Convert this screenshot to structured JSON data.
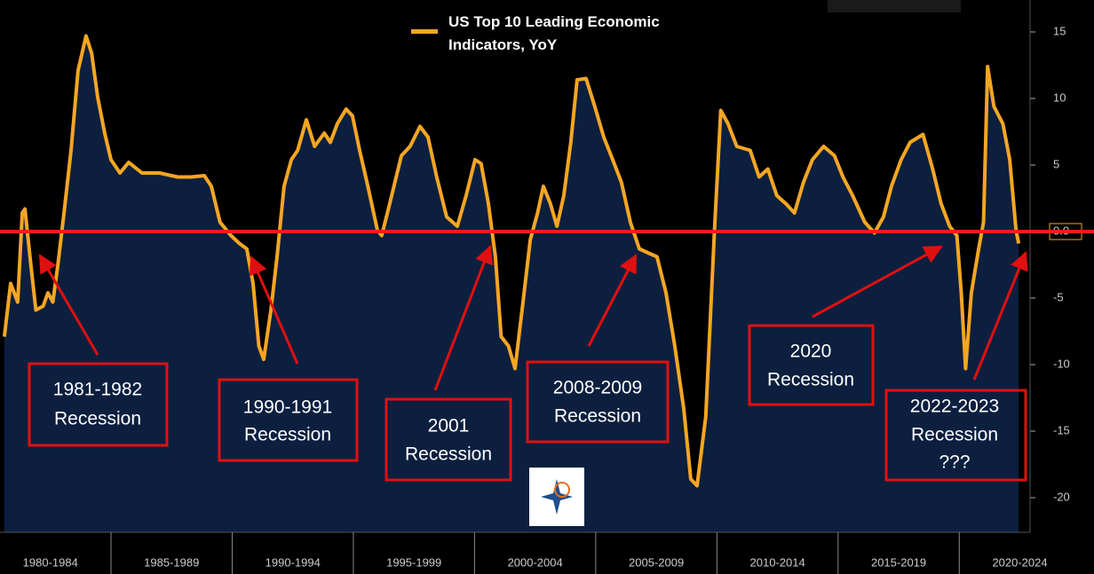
{
  "chart_data": {
    "type": "area",
    "series": [
      {
        "name": "US Top 10 Leading Economic Indicators, YoY",
        "color": "#f5a623",
        "fill": "#0c1f3f",
        "values": [
          -7.9,
          -3.9,
          -5.3,
          1.4,
          1.7,
          -2.6,
          -5.9,
          -5.6,
          -4.6,
          -5.3,
          -2.6,
          1.4,
          6.1,
          12.1,
          14.7,
          13.4,
          10.1,
          7.4,
          5.4,
          4.4,
          5.2,
          4.4,
          4.4,
          4.1,
          4.1,
          4.2,
          3.4,
          0.7,
          -0.3,
          -0.9,
          -1.3,
          -3.9,
          -8.6,
          -9.6,
          -5.9,
          -1.9,
          3.4,
          5.4,
          6.1,
          8.4,
          6.4,
          7.4,
          6.7,
          8.1,
          9.2,
          8.7,
          6.1,
          3.4,
          0.1,
          -0.3,
          2.1,
          5.7,
          6.4,
          7.9,
          7.1,
          4.1,
          1.1,
          0.4,
          2.7,
          5.4,
          5.1,
          2.1,
          -1.9,
          -7.9,
          -8.6,
          -10.3,
          -5.3,
          -0.6,
          1.4,
          3.4,
          2.1,
          0.4,
          2.7,
          6.7,
          11.4,
          11.5,
          9.4,
          7.1,
          5.4,
          3.7,
          0.7,
          -1.3,
          -1.6,
          -1.9,
          -4.6,
          -8.6,
          -13.3,
          -18.6,
          -19.1,
          -13.9,
          0.1,
          9.1,
          8.1,
          6.4,
          6.1,
          4.1,
          4.7,
          2.7,
          2.1,
          1.4,
          3.7,
          5.4,
          6.4,
          5.7,
          4.1,
          2.7,
          0.7,
          -0.1,
          1.1,
          3.4,
          5.4,
          6.7,
          7.3,
          4.7,
          2.1,
          0.4,
          -0.3,
          -4.6,
          -10.3,
          -4.6,
          -1.3,
          0.7,
          12.4,
          9.4,
          8.1,
          5.4,
          0.1,
          -0.9
        ]
      }
    ],
    "x": [
      1980.6,
      1980.86,
      1981.15,
      1981.34,
      1981.45,
      1981.7,
      1981.9,
      1982.2,
      1982.4,
      1982.6,
      1982.8,
      1983.06,
      1983.35,
      1983.64,
      1983.97,
      1984.2,
      1984.45,
      1984.74,
      1985.0,
      1985.37,
      1985.73,
      1986.28,
      1987.0,
      1987.75,
      1988.3,
      1988.85,
      1989.14,
      1989.5,
      1989.95,
      1990.3,
      1990.6,
      1990.86,
      1991.1,
      1991.3,
      1991.6,
      1991.85,
      1992.14,
      1992.44,
      1992.7,
      1993.06,
      1993.4,
      1993.8,
      1994.05,
      1994.34,
      1994.7,
      1994.96,
      1995.26,
      1995.6,
      1995.99,
      1996.17,
      1996.5,
      1996.98,
      1997.34,
      1997.75,
      1998.08,
      1998.44,
      1998.85,
      1999.29,
      1999.65,
      2000.02,
      2000.27,
      2000.57,
      2000.86,
      2001.1,
      2001.4,
      2001.67,
      2002.0,
      2002.3,
      2002.6,
      2002.84,
      2003.13,
      2003.4,
      2003.68,
      2003.97,
      2004.23,
      2004.6,
      2004.96,
      2005.33,
      2005.7,
      2006.06,
      2006.43,
      2006.8,
      2007.16,
      2007.53,
      2007.9,
      2008.26,
      2008.63,
      2008.92,
      2009.18,
      2009.54,
      2009.9,
      2010.16,
      2010.46,
      2010.82,
      2011.37,
      2011.74,
      2012.1,
      2012.47,
      2012.84,
      2013.2,
      2013.57,
      2013.94,
      2014.4,
      2014.85,
      2015.2,
      2015.6,
      2016.1,
      2016.5,
      2016.87,
      2017.2,
      2017.6,
      2017.97,
      2018.5,
      2018.9,
      2019.25,
      2019.6,
      2019.9,
      2020.08,
      2020.26,
      2020.5,
      2020.8,
      2021.0,
      2021.17,
      2021.43,
      2021.8,
      2022.08,
      2022.34,
      2022.45
    ],
    "xlim": [
      1980.42,
      2022.92
    ],
    "xticks": [
      {
        "value": 1980,
        "label": "1980-1984"
      },
      {
        "value": 1985,
        "label": "1985-1989"
      },
      {
        "value": 1990,
        "label": "1990-1994"
      },
      {
        "value": 1995,
        "label": "1995-1999"
      },
      {
        "value": 2000,
        "label": "2000-2004"
      },
      {
        "value": 2005,
        "label": "2005-2009"
      },
      {
        "value": 2010,
        "label": "2010-2014"
      },
      {
        "value": 2015,
        "label": "2015-2019"
      },
      {
        "value": 2020,
        "label": "2020-2024"
      }
    ],
    "ylim": [
      -22.6,
      17.4
    ],
    "yticks": [
      15,
      10,
      5,
      {
        "value": 0,
        "label": "0.0"
      },
      -5,
      -10,
      -15,
      -20
    ],
    "reference_line": {
      "value": 0,
      "color": "#ff1a1a"
    },
    "annotations": [
      {
        "text": [
          "1981-1982",
          "Recession"
        ]
      },
      {
        "text": [
          "1990-1991",
          "Recession"
        ]
      },
      {
        "text": [
          "2001",
          "Recession"
        ]
      },
      {
        "text": [
          "2008-2009",
          "Recession"
        ]
      },
      {
        "text": [
          "2020",
          "Recession"
        ]
      },
      {
        "text": [
          "2022-2023",
          "Recession",
          "???"
        ]
      }
    ]
  }
}
